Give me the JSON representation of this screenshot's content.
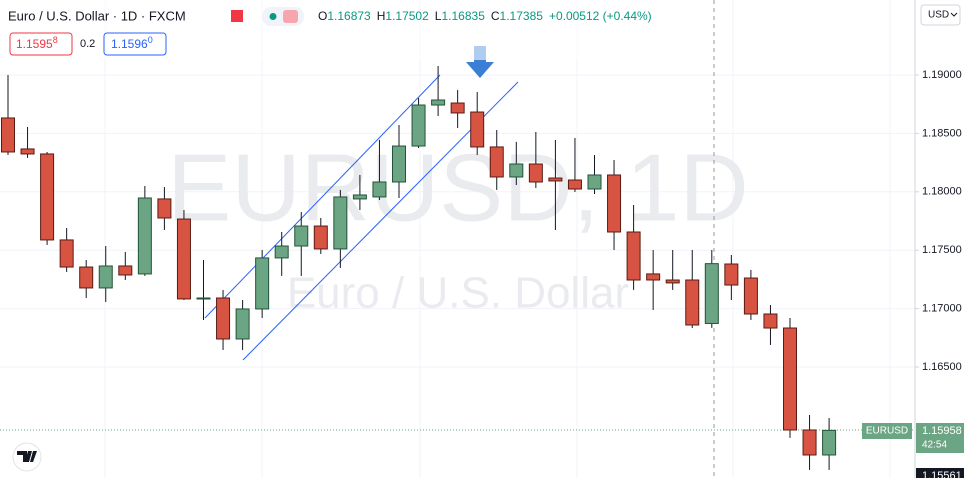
{
  "chart_data": {
    "type": "candlestick",
    "title": "Euro / U.S. Dollar · 1D · FXCM",
    "ohlc_header": [
      {
        "letter": "O",
        "value": "1.16873"
      },
      {
        "letter": "H",
        "value": "1.17502"
      },
      {
        "letter": "L",
        "value": "1.16835"
      },
      {
        "letter": "C",
        "value": "1.17385"
      }
    ],
    "change": "+0.00512 (+0.44%)",
    "sell": {
      "price": "1.1595",
      "pip": "8"
    },
    "spread": "0.2",
    "buy": {
      "price": "1.1596",
      "pip": "0"
    },
    "currency": "USD",
    "watermark": {
      "symbol": "EURUSD, 1D",
      "name": "Euro / U.S. Dollar"
    },
    "price_tag": {
      "symbol": "EURUSD",
      "price": "1.15958",
      "countdown": "42:54"
    },
    "bottom_label": "1.15561",
    "up_color": "#6ba583",
    "down_color": "#d75442",
    "grid": true,
    "open": [
      1.18632,
      1.18367,
      1.18324,
      1.17588,
      1.17356,
      1.17177,
      1.17365,
      1.17297,
      1.17939,
      1.17767,
      1.17083,
      1.17091,
      1.1674,
      1.16997,
      1.17434,
      1.17536,
      1.17707,
      1.17511,
      1.17939,
      1.17956,
      1.18084,
      1.18392,
      1.18743,
      1.1876,
      1.18683,
      1.18384,
      1.18127,
      1.18238,
      1.18118,
      1.18101,
      1.18024,
      1.18144,
      1.17656,
      1.17297,
      1.17245,
      1.17245,
      1.16873,
      1.17382,
      1.17262,
      1.16954,
      1.16834,
      1.15961,
      1.15747
    ],
    "high": [
      1.19,
      1.18555,
      1.18341,
      1.1769,
      1.17416,
      1.17536,
      1.17485,
      1.1805,
      1.18041,
      1.17844,
      1.17416,
      1.1716,
      1.17074,
      1.17502,
      1.17656,
      1.17827,
      1.17776,
      1.18016,
      1.18144,
      1.18444,
      1.18572,
      1.18803,
      1.19077,
      1.18872,
      1.18854,
      1.18529,
      1.18427,
      1.18512,
      1.18444,
      1.18461,
      1.18315,
      1.18272,
      1.17887,
      1.17502,
      1.17502,
      1.17502,
      1.17502,
      1.17459,
      1.17331,
      1.17031,
      1.1692,
      1.1609,
      1.16064
    ],
    "low": [
      1.18315,
      1.1829,
      1.17545,
      1.17314,
      1.17091,
      1.17057,
      1.17245,
      1.1728,
      1.17673,
      1.17074,
      1.16903,
      1.16646,
      1.16646,
      1.1692,
      1.1728,
      1.1728,
      1.17468,
      1.17348,
      1.17844,
      1.1793,
      1.17947,
      1.18375,
      1.18649,
      1.18546,
      1.18315,
      1.18016,
      1.18058,
      1.18033,
      1.17673,
      1.17998,
      1.17981,
      1.17502,
      1.1716,
      1.16988,
      1.1716,
      1.16834,
      1.16835,
      1.17074,
      1.16903,
      1.16689,
      1.15893,
      1.15619,
      1.15619
    ],
    "close": [
      1.18341,
      1.18324,
      1.17588,
      1.17356,
      1.17177,
      1.17365,
      1.17288,
      1.17947,
      1.17776,
      1.17083,
      1.17091,
      1.1674,
      1.16997,
      1.17434,
      1.17536,
      1.17707,
      1.17511,
      1.17956,
      1.17973,
      1.18084,
      1.18392,
      1.18743,
      1.18786,
      1.18675,
      1.18384,
      1.18127,
      1.18238,
      1.18084,
      1.18093,
      1.18024,
      1.18144,
      1.17656,
      1.17245,
      1.17245,
      1.1722,
      1.1686,
      1.17385,
      1.17202,
      1.16954,
      1.16834,
      1.15961,
      1.15747,
      1.15958
    ],
    "ylim": [
      1.1555,
      1.19642
    ],
    "yticks": [
      {
        "value": 1.165,
        "label": "1.16500"
      },
      {
        "value": 1.17,
        "label": "1.17000"
      },
      {
        "value": 1.175,
        "label": "1.17500"
      },
      {
        "value": 1.18,
        "label": "1.18000"
      },
      {
        "value": 1.185,
        "label": "1.18500"
      },
      {
        "value": 1.19,
        "label": "1.19000"
      }
    ]
  }
}
